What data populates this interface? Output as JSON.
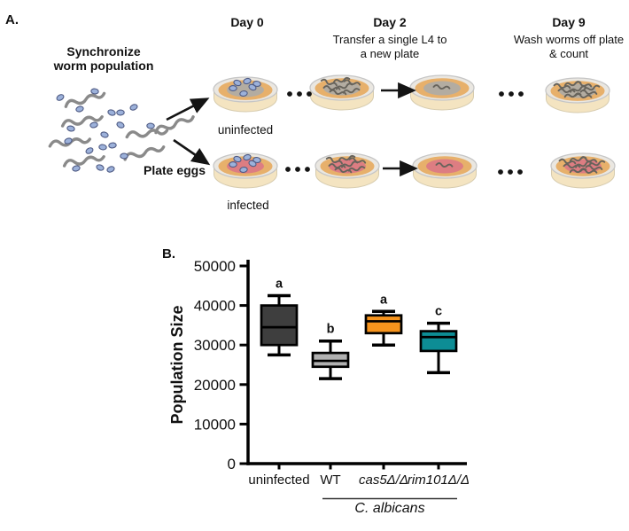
{
  "panel_a": {
    "label": "A.",
    "synchronize_line1": "Synchronize",
    "synchronize_line2": "worm population",
    "plate_eggs": "Plate eggs",
    "uninfected": "uninfected",
    "infected": "infected",
    "day0_title": "Day 0",
    "day2_title": "Day 2",
    "day2_sub1": "Transfer a single L4 to",
    "day2_sub2": "a new plate",
    "day9_title": "Day 9",
    "day9_sub1": "Wash worms off plate",
    "day9_sub2": "& count"
  },
  "panel_b": {
    "label": "B."
  },
  "chart_data": {
    "type": "box",
    "title": "",
    "xlabel": "",
    "ylabel": "Population Size",
    "ylim": [
      0,
      50000
    ],
    "yticks": [
      0,
      10000,
      20000,
      30000,
      40000,
      50000
    ],
    "grid": false,
    "categories": [
      {
        "label": "uninfected",
        "italic": false
      },
      {
        "label": "WT",
        "italic": false
      },
      {
        "label": "cas5Δ/Δ",
        "italic": true
      },
      {
        "label": "rim101Δ/Δ",
        "italic": true
      }
    ],
    "group_label": "C. albicans",
    "group_span_categories": [
      "WT",
      "cas5Δ/Δ",
      "rim101Δ/Δ"
    ],
    "boxes": [
      {
        "category": "uninfected",
        "significance_letter": "a",
        "color": "#3e3e3e",
        "whisker_low": 27500,
        "q1": 30000,
        "median": 34500,
        "q3": 40000,
        "whisker_high": 42500
      },
      {
        "category": "WT",
        "significance_letter": "b",
        "color": "#b1b1b1",
        "whisker_low": 21500,
        "q1": 24500,
        "median": 26000,
        "q3": 28000,
        "whisker_high": 31000
      },
      {
        "category": "cas5Δ/Δ",
        "significance_letter": "a",
        "color": "#f7941d",
        "whisker_low": 30000,
        "q1": 33000,
        "median": 36000,
        "q3": 37500,
        "whisker_high": 38500
      },
      {
        "category": "rim101Δ/Δ",
        "significance_letter": "c",
        "color": "#0d8d95",
        "whisker_low": 23000,
        "q1": 28500,
        "median": 32000,
        "q3": 33500,
        "whisker_high": 35500
      }
    ]
  }
}
